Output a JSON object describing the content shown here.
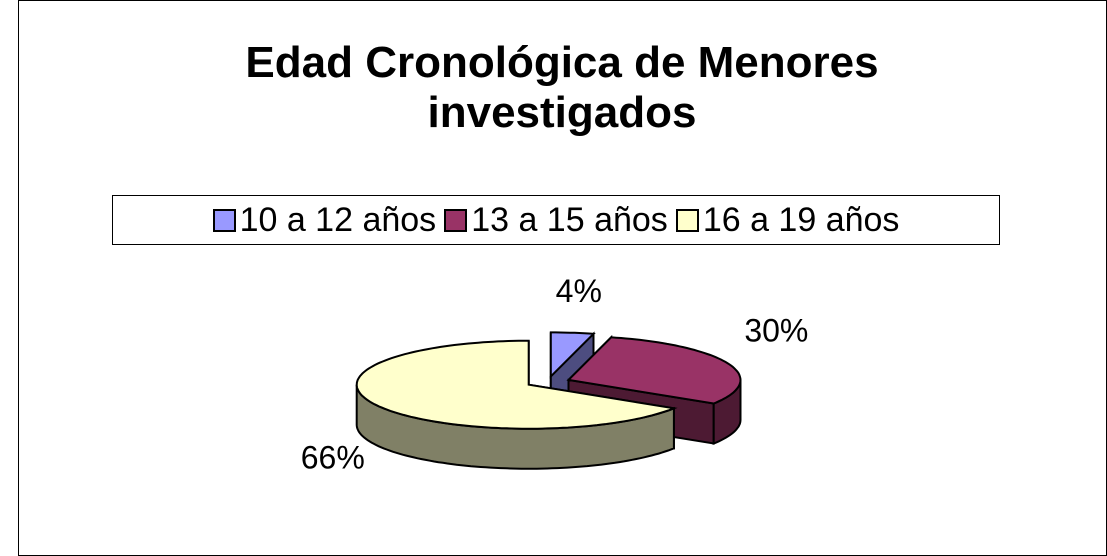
{
  "chart_data": {
    "type": "pie3d",
    "title": "Edad Cronológica de Menores investigados",
    "categories": [
      "10 a 12 años",
      "13 a 15 años",
      "16 a 19 años"
    ],
    "values": [
      4,
      30,
      66
    ],
    "value_labels": [
      "4%",
      "30%",
      "66%"
    ],
    "colors": [
      "#9999ff",
      "#993366",
      "#ffffcc"
    ],
    "legend": "top"
  }
}
